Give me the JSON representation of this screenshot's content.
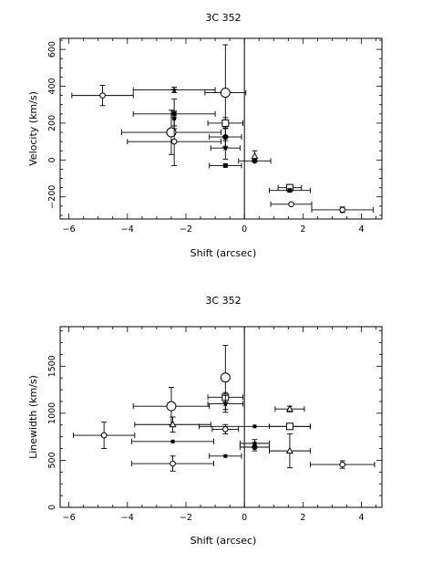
{
  "chart_data": [
    {
      "type": "scatter",
      "title": "3C 352",
      "xlabel": "Shift (arcsec)",
      "ylabel": "Velocity (km/s)",
      "xlim": [
        -6.3,
        4.7
      ],
      "ylim": [
        -320,
        660
      ],
      "xticks": [
        -6,
        -4,
        -2,
        0,
        2,
        4
      ],
      "yticks": [
        -200,
        0,
        200,
        400,
        600
      ],
      "vline_x": 0,
      "points": [
        {
          "x": -4.85,
          "y": 350,
          "xerr": [
            1.05,
            1.05
          ],
          "yerr": [
            55,
            55
          ],
          "marker": "open-circle-small"
        },
        {
          "x": -2.4,
          "y": 380,
          "xerr": [
            1.4,
            1.4
          ],
          "yerr": [
            15,
            15
          ],
          "marker": "star"
        },
        {
          "x": -2.4,
          "y": 250,
          "xerr": [
            1.4,
            1.4
          ],
          "yerr": [
            80,
            80
          ],
          "marker": "filled-square"
        },
        {
          "x": -2.4,
          "y": 225,
          "xerr": [
            0,
            0
          ],
          "yerr": [
            40,
            40
          ],
          "marker": "filled-square-small"
        },
        {
          "x": -2.5,
          "y": 150,
          "xerr": [
            1.7,
            1.7
          ],
          "yerr": [
            120,
            120
          ],
          "marker": "open-circle-large"
        },
        {
          "x": -2.4,
          "y": 100,
          "xerr": [
            1.6,
            1.6
          ],
          "yerr": [
            130,
            130
          ],
          "marker": "open-circle-small"
        },
        {
          "x": -0.65,
          "y": 365,
          "xerr": [
            0.7,
            0.7
          ],
          "yerr": [
            260,
            260
          ],
          "marker": "open-circle-large"
        },
        {
          "x": -0.65,
          "y": 200,
          "xerr": [
            0.6,
            0.6
          ],
          "yerr": [
            30,
            30
          ],
          "marker": "open-square"
        },
        {
          "x": -0.65,
          "y": 125,
          "xerr": [
            0.55,
            0.55
          ],
          "yerr": [
            50,
            50
          ],
          "marker": "filled-circle"
        },
        {
          "x": -0.65,
          "y": 65,
          "xerr": [
            0.5,
            0.5
          ],
          "yerr": [
            60,
            60
          ],
          "marker": "star"
        },
        {
          "x": -0.65,
          "y": -30,
          "xerr": [
            0.55,
            0.55
          ],
          "yerr": [
            0,
            0
          ],
          "marker": "filled-square"
        },
        {
          "x": 0.35,
          "y": 20,
          "xerr": [
            0,
            0
          ],
          "yerr": [
            30,
            30
          ],
          "marker": "open-triangle"
        },
        {
          "x": 0.35,
          "y": -5,
          "xerr": [
            0.55,
            0.55
          ],
          "yerr": [
            0,
            0
          ],
          "marker": "filled-circle"
        },
        {
          "x": 1.55,
          "y": -150,
          "xerr": [
            0.4,
            0.4
          ],
          "yerr": [
            0,
            0
          ],
          "marker": "open-square"
        },
        {
          "x": 1.55,
          "y": -165,
          "xerr": [
            0.7,
            0.7
          ],
          "yerr": [
            0,
            0
          ],
          "marker": "filled-square"
        },
        {
          "x": 1.6,
          "y": -240,
          "xerr": [
            0.7,
            0.7
          ],
          "yerr": [
            0,
            0
          ],
          "marker": "open-circle-small"
        },
        {
          "x": 3.35,
          "y": -270,
          "xerr": [
            1.05,
            1.05
          ],
          "yerr": [
            15,
            15
          ],
          "marker": "open-circle-small"
        }
      ]
    },
    {
      "type": "scatter",
      "title": "3C 352",
      "xlabel": "Shift (arcsec)",
      "ylabel": "Linewidth (km/s)",
      "xlim": [
        -6.3,
        4.7
      ],
      "ylim": [
        0,
        1920
      ],
      "xticks": [
        -6,
        -4,
        -2,
        0,
        2,
        4
      ],
      "yticks": [
        0,
        500,
        1000,
        1500
      ],
      "vline_x": 0,
      "points": [
        {
          "x": -4.8,
          "y": 765,
          "xerr": [
            1.05,
            1.05
          ],
          "yerr": [
            140,
            140
          ],
          "marker": "open-circle-small"
        },
        {
          "x": -2.5,
          "y": 1075,
          "xerr": [
            1.3,
            1.3
          ],
          "yerr": [
            200,
            200
          ],
          "marker": "open-circle-large"
        },
        {
          "x": -2.45,
          "y": 880,
          "xerr": [
            1.3,
            1.3
          ],
          "yerr": [
            80,
            80
          ],
          "marker": "open-triangle"
        },
        {
          "x": -2.45,
          "y": 700,
          "xerr": [
            1.4,
            1.4
          ],
          "yerr": [
            0,
            0
          ],
          "marker": "filled-square-small"
        },
        {
          "x": -2.45,
          "y": 465,
          "xerr": [
            1.4,
            1.4
          ],
          "yerr": [
            80,
            80
          ],
          "marker": "open-circle-small"
        },
        {
          "x": -0.65,
          "y": 1380,
          "xerr": [
            0,
            0
          ],
          "yerr": [
            340,
            340
          ],
          "marker": "open-circle-large"
        },
        {
          "x": -0.65,
          "y": 1170,
          "xerr": [
            0.6,
            0.6
          ],
          "yerr": [
            50,
            50
          ],
          "marker": "open-square"
        },
        {
          "x": -0.65,
          "y": 1100,
          "xerr": [
            0.6,
            0.6
          ],
          "yerr": [
            90,
            90
          ],
          "marker": "star"
        },
        {
          "x": -0.65,
          "y": 830,
          "xerr": [
            0.45,
            0.45
          ],
          "yerr": [
            50,
            50
          ],
          "marker": "open-circle-small"
        },
        {
          "x": -0.65,
          "y": 545,
          "xerr": [
            0.55,
            0.55
          ],
          "yerr": [
            0,
            0
          ],
          "marker": "filled-square-small"
        },
        {
          "x": 0.35,
          "y": 860,
          "xerr": [
            1.9,
            1.9
          ],
          "yerr": [
            0,
            0
          ],
          "marker": "filled-square-small"
        },
        {
          "x": 0.35,
          "y": 680,
          "xerr": [
            0.5,
            0.5
          ],
          "yerr": [
            40,
            40
          ],
          "marker": "filled-square-small"
        },
        {
          "x": 0.35,
          "y": 640,
          "xerr": [
            0.5,
            0.5
          ],
          "yerr": [
            40,
            40
          ],
          "marker": "filled-circle"
        },
        {
          "x": 1.55,
          "y": 1045,
          "xerr": [
            0.5,
            0.5
          ],
          "yerr": [
            30,
            30
          ],
          "marker": "open-triangle"
        },
        {
          "x": 1.55,
          "y": 860,
          "xerr": [
            0.7,
            0.7
          ],
          "yerr": [
            0,
            0
          ],
          "marker": "open-square"
        },
        {
          "x": 1.55,
          "y": 600,
          "xerr": [
            0.7,
            0.7
          ],
          "yerr": [
            180,
            180
          ],
          "marker": "open-triangle"
        },
        {
          "x": 3.35,
          "y": 455,
          "xerr": [
            1.1,
            1.1
          ],
          "yerr": [
            40,
            40
          ],
          "marker": "open-circle-small"
        }
      ]
    }
  ]
}
